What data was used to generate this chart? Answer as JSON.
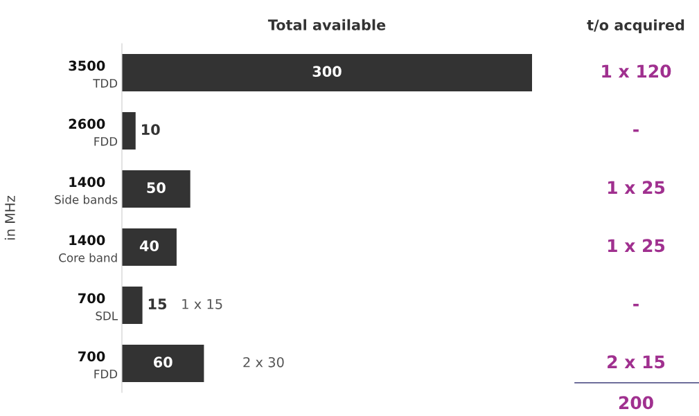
{
  "chart_data": [
    {
      "type": "bar",
      "orientation": "horizontal",
      "title": "Total available",
      "ylabel": "in MHz",
      "categories": [
        "3500\nTDD",
        "2600\nFDD",
        "1400\nSide bands",
        "1400\nCore band",
        "700\nSDL",
        "700\nFDD"
      ],
      "values": [
        300,
        10,
        50,
        40,
        15,
        60
      ],
      "color": "#333333",
      "data_labels": true,
      "xlim": [
        0,
        300
      ],
      "annotations": [
        {
          "text": "1 x 15",
          "x": 15,
          "y": "700\nSDL"
        },
        {
          "text": "2 x 30",
          "x": 60,
          "y": "700\nFDD"
        }
      ]
    },
    {
      "type": "other",
      "title": "t/o acquired",
      "color": "#a0308f",
      "annotations": [
        "1 x 120",
        "-",
        "1 x 25",
        "1 x 25",
        "-",
        "2 x 15",
        "200"
      ]
    }
  ]
}
